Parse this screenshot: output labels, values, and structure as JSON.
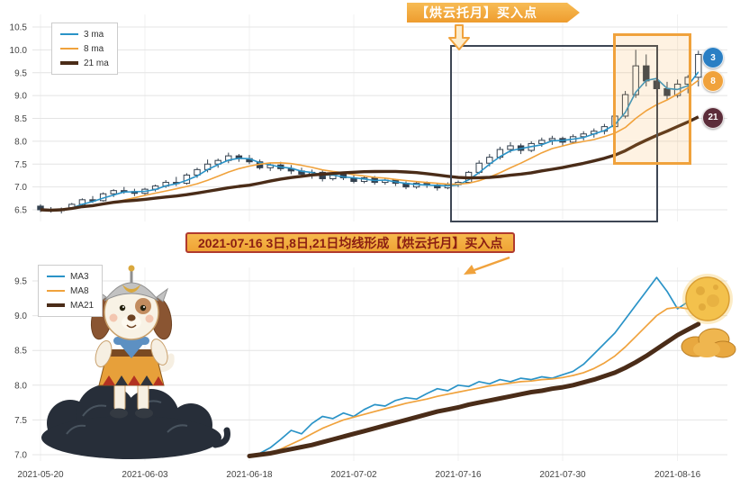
{
  "colors": {
    "ma3": "#2a93c7",
    "ma8": "#f0a23c",
    "ma21": "#4a2c18",
    "candle": "#33404e",
    "accent_orange": "#f0a23c",
    "banner_text": "#8b1e12",
    "banner_border": "#b03a2e",
    "grid": "#e4e4e4",
    "axis_text": "#444444"
  },
  "annotations": {
    "top_banner_text": "【烘云托月】买入点",
    "middle_banner_text": "2021-07-16 3日,8日,21日均线形成【烘云托月】买入点",
    "badges": [
      {
        "label": "3",
        "color": "#2a7fc4"
      },
      {
        "label": "8",
        "color": "#f0a23c"
      },
      {
        "label": "21",
        "color": "#5c2d3a"
      }
    ]
  },
  "chart_data": [
    {
      "type": "candlestick",
      "title": "",
      "ylim": [
        6.5,
        10.5
      ],
      "yticks": [
        6.5,
        7.0,
        7.5,
        8.0,
        8.5,
        9.0,
        9.5,
        10.0,
        10.5
      ],
      "legend": [
        "3 ma",
        "8 ma",
        "21 ma"
      ],
      "ma_periods": [
        3,
        8,
        21
      ],
      "x_tick_labels": [
        "2021-05-20",
        "2021-06-03",
        "2021-06-18",
        "2021-07-02",
        "2021-07-16",
        "2021-07-30",
        "2021-08-16"
      ],
      "x_tick_indices": [
        0,
        10,
        20,
        30,
        40,
        50,
        61
      ],
      "candles_format": [
        "date",
        "open",
        "high",
        "low",
        "close"
      ],
      "candles": [
        [
          "2021-05-20",
          6.58,
          6.62,
          6.45,
          6.5
        ],
        [
          "2021-05-21",
          6.5,
          6.56,
          6.44,
          6.48
        ],
        [
          "2021-05-24",
          6.48,
          6.55,
          6.42,
          6.52
        ],
        [
          "2021-05-25",
          6.52,
          6.65,
          6.5,
          6.62
        ],
        [
          "2021-05-26",
          6.62,
          6.75,
          6.58,
          6.72
        ],
        [
          "2021-05-27",
          6.72,
          6.8,
          6.65,
          6.7
        ],
        [
          "2021-05-28",
          6.7,
          6.88,
          6.68,
          6.85
        ],
        [
          "2021-05-31",
          6.85,
          6.95,
          6.78,
          6.92
        ],
        [
          "2021-06-01",
          6.92,
          7.0,
          6.85,
          6.9
        ],
        [
          "2021-06-02",
          6.9,
          6.96,
          6.8,
          6.86
        ],
        [
          "2021-06-03",
          6.86,
          6.98,
          6.82,
          6.95
        ],
        [
          "2021-06-04",
          6.95,
          7.05,
          6.9,
          7.02
        ],
        [
          "2021-06-07",
          7.02,
          7.15,
          6.98,
          7.1
        ],
        [
          "2021-06-08",
          7.1,
          7.22,
          7.02,
          7.08
        ],
        [
          "2021-06-09",
          7.08,
          7.3,
          7.05,
          7.26
        ],
        [
          "2021-06-10",
          7.26,
          7.42,
          7.2,
          7.38
        ],
        [
          "2021-06-11",
          7.38,
          7.6,
          7.32,
          7.5
        ],
        [
          "2021-06-15",
          7.5,
          7.62,
          7.42,
          7.58
        ],
        [
          "2021-06-16",
          7.58,
          7.75,
          7.52,
          7.68
        ],
        [
          "2021-06-17",
          7.68,
          7.72,
          7.55,
          7.62
        ],
        [
          "2021-06-18",
          7.62,
          7.7,
          7.5,
          7.55
        ],
        [
          "2021-06-21",
          7.55,
          7.6,
          7.38,
          7.42
        ],
        [
          "2021-06-22",
          7.42,
          7.52,
          7.35,
          7.48
        ],
        [
          "2021-06-23",
          7.48,
          7.55,
          7.35,
          7.4
        ],
        [
          "2021-06-24",
          7.4,
          7.48,
          7.28,
          7.35
        ],
        [
          "2021-06-25",
          7.35,
          7.42,
          7.22,
          7.28
        ],
        [
          "2021-06-28",
          7.28,
          7.38,
          7.18,
          7.32
        ],
        [
          "2021-06-29",
          7.32,
          7.36,
          7.12,
          7.18
        ],
        [
          "2021-06-30",
          7.18,
          7.32,
          7.14,
          7.28
        ],
        [
          "2021-07-01",
          7.28,
          7.33,
          7.15,
          7.2
        ],
        [
          "2021-07-02",
          7.2,
          7.26,
          7.08,
          7.12
        ],
        [
          "2021-07-05",
          7.12,
          7.24,
          7.08,
          7.2
        ],
        [
          "2021-07-06",
          7.2,
          7.24,
          7.05,
          7.1
        ],
        [
          "2021-07-07",
          7.1,
          7.2,
          7.05,
          7.15
        ],
        [
          "2021-07-08",
          7.15,
          7.18,
          7.02,
          7.08
        ],
        [
          "2021-07-09",
          7.08,
          7.12,
          6.95,
          7.0
        ],
        [
          "2021-07-12",
          7.0,
          7.12,
          6.96,
          7.08
        ],
        [
          "2021-07-13",
          7.08,
          7.12,
          6.98,
          7.04
        ],
        [
          "2021-07-14",
          7.04,
          7.08,
          6.92,
          6.98
        ],
        [
          "2021-07-15",
          6.98,
          7.1,
          6.95,
          7.05
        ],
        [
          "2021-07-16",
          7.05,
          7.14,
          7.0,
          7.1
        ],
        [
          "2021-07-19",
          7.1,
          7.35,
          7.08,
          7.32
        ],
        [
          "2021-07-20",
          7.32,
          7.58,
          7.28,
          7.52
        ],
        [
          "2021-07-21",
          7.52,
          7.72,
          7.45,
          7.65
        ],
        [
          "2021-07-22",
          7.65,
          7.88,
          7.6,
          7.82
        ],
        [
          "2021-07-23",
          7.82,
          7.98,
          7.75,
          7.9
        ],
        [
          "2021-07-26",
          7.9,
          7.95,
          7.72,
          7.8
        ],
        [
          "2021-07-27",
          7.8,
          8.0,
          7.76,
          7.95
        ],
        [
          "2021-07-28",
          7.95,
          8.08,
          7.88,
          8.02
        ],
        [
          "2021-07-29",
          8.02,
          8.12,
          7.92,
          8.06
        ],
        [
          "2021-07-30",
          8.06,
          8.1,
          7.9,
          7.98
        ],
        [
          "2021-08-02",
          7.98,
          8.15,
          7.94,
          8.1
        ],
        [
          "2021-08-03",
          8.1,
          8.22,
          8.02,
          8.16
        ],
        [
          "2021-08-04",
          8.16,
          8.28,
          8.08,
          8.22
        ],
        [
          "2021-08-05",
          8.22,
          8.38,
          8.15,
          8.32
        ],
        [
          "2021-08-06",
          8.32,
          8.6,
          8.26,
          8.55
        ],
        [
          "2021-08-09",
          8.55,
          9.1,
          8.5,
          9.02
        ],
        [
          "2021-08-10",
          9.02,
          10.0,
          8.95,
          9.65
        ],
        [
          "2021-08-11",
          9.65,
          9.9,
          9.2,
          9.32
        ],
        [
          "2021-08-12",
          9.32,
          9.55,
          9.05,
          9.15
        ],
        [
          "2021-08-13",
          9.15,
          9.3,
          8.9,
          9.0
        ],
        [
          "2021-08-16",
          9.0,
          9.35,
          8.95,
          9.25
        ],
        [
          "2021-08-17",
          9.25,
          9.45,
          9.05,
          9.4
        ],
        [
          "2021-08-18",
          9.4,
          9.98,
          9.2,
          9.9
        ]
      ]
    },
    {
      "type": "line",
      "ylim": [
        7.0,
        9.5
      ],
      "yticks": [
        7.0,
        7.5,
        8.0,
        8.5,
        9.0,
        9.5
      ],
      "legend": [
        "MA3",
        "MA8",
        "MA21"
      ],
      "start_date": "2021-06-18",
      "start_index": 20,
      "series": [
        {
          "name": "MA3",
          "values": [
            6.98,
            7.02,
            7.1,
            7.22,
            7.35,
            7.3,
            7.45,
            7.55,
            7.52,
            7.6,
            7.55,
            7.65,
            7.72,
            7.7,
            7.78,
            7.82,
            7.8,
            7.88,
            7.95,
            7.92,
            8.0,
            7.98,
            8.05,
            8.02,
            8.08,
            8.05,
            8.1,
            8.08,
            8.12,
            8.1,
            8.15,
            8.2,
            8.3,
            8.45,
            8.6,
            8.75,
            8.95,
            9.15,
            9.35,
            9.55,
            9.35,
            9.1,
            9.2,
            9.32
          ]
        },
        {
          "name": "MA8",
          "values": [
            6.98,
            7.0,
            7.03,
            7.08,
            7.15,
            7.22,
            7.3,
            7.38,
            7.44,
            7.5,
            7.54,
            7.58,
            7.62,
            7.66,
            7.7,
            7.74,
            7.77,
            7.8,
            7.84,
            7.87,
            7.9,
            7.93,
            7.96,
            7.99,
            8.01,
            8.03,
            8.05,
            8.06,
            8.08,
            8.09,
            8.11,
            8.14,
            8.18,
            8.24,
            8.32,
            8.42,
            8.55,
            8.7,
            8.85,
            9.0,
            9.1,
            9.12,
            9.1,
            9.15
          ]
        },
        {
          "name": "MA21",
          "values": [
            6.98,
            7.0,
            7.02,
            7.05,
            7.08,
            7.11,
            7.14,
            7.18,
            7.22,
            7.26,
            7.3,
            7.34,
            7.38,
            7.42,
            7.46,
            7.5,
            7.54,
            7.58,
            7.62,
            7.65,
            7.68,
            7.72,
            7.75,
            7.78,
            7.81,
            7.84,
            7.87,
            7.9,
            7.92,
            7.95,
            7.97,
            8.0,
            8.04,
            8.08,
            8.13,
            8.18,
            8.25,
            8.33,
            8.42,
            8.52,
            8.62,
            8.72,
            8.8,
            8.88
          ]
        }
      ]
    }
  ]
}
